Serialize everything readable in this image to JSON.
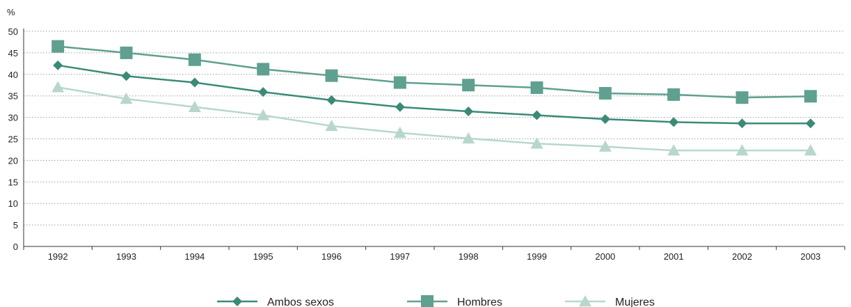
{
  "chart_data": {
    "type": "line",
    "unit_label": "%",
    "categories": [
      "1992",
      "1993",
      "1994",
      "1995",
      "1996",
      "1997",
      "1998",
      "1999",
      "2000",
      "2001",
      "2002",
      "2003"
    ],
    "ylim": [
      0,
      50
    ],
    "yticks": [
      0,
      5,
      10,
      15,
      20,
      25,
      30,
      35,
      40,
      45,
      50
    ],
    "grid": "horizontal-dotted",
    "legend_position": "bottom",
    "series": [
      {
        "name": "Ambos sexos",
        "marker": "diamond",
        "color": "#3b8a78",
        "values": [
          42.1,
          39.6,
          38.1,
          35.9,
          34.0,
          32.4,
          31.4,
          30.5,
          29.6,
          28.9,
          28.6,
          28.6
        ]
      },
      {
        "name": "Hombres",
        "marker": "square",
        "color": "#5fa090",
        "values": [
          46.5,
          45.0,
          43.4,
          41.2,
          39.7,
          38.1,
          37.5,
          36.9,
          35.6,
          35.3,
          34.6,
          34.9
        ]
      },
      {
        "name": "Mujeres",
        "marker": "triangle",
        "color": "#b7d7cd",
        "values": [
          37.0,
          34.3,
          32.4,
          30.5,
          28.0,
          26.4,
          25.1,
          23.9,
          23.2,
          22.3,
          22.3,
          22.3
        ]
      }
    ]
  }
}
